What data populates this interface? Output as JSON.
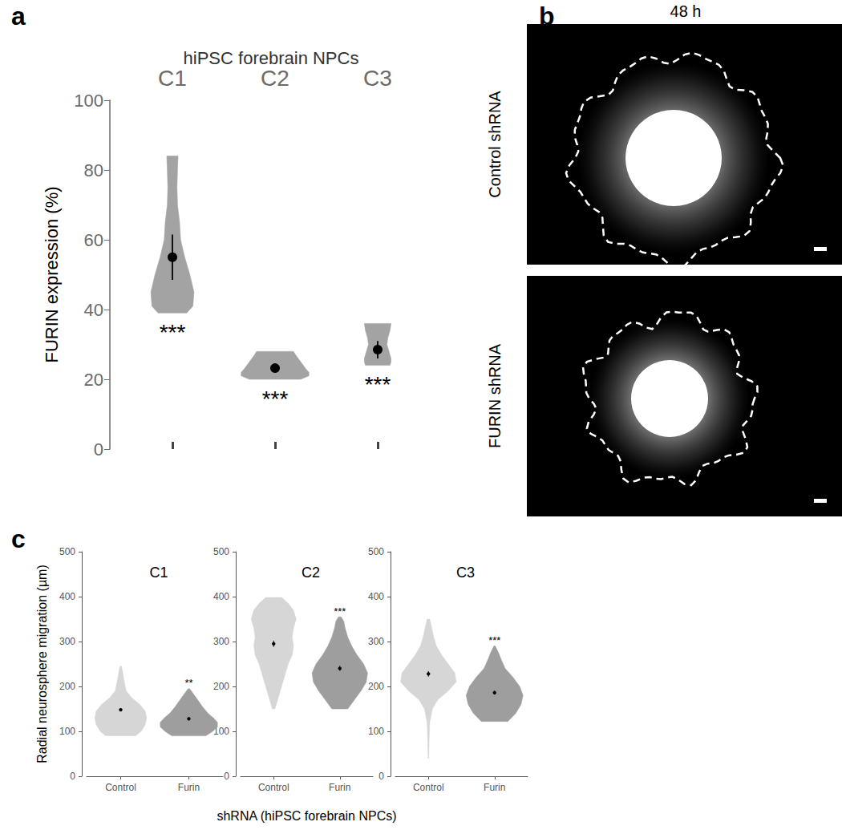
{
  "chart_data": [
    {
      "panel": "a",
      "type": "violin",
      "title": "hiPSC forebrain NPCs",
      "y_label": "FURIN expression (%)",
      "categories": [
        "C1",
        "C2",
        "C3"
      ],
      "ylim": [
        0,
        100
      ],
      "yticks": [
        0,
        20,
        40,
        60,
        80,
        100
      ],
      "color": "#a3a3a3",
      "violins": [
        {
          "density": [
            [
              39,
              0.14
            ],
            [
              41,
              0.2
            ],
            [
              45,
              0.21
            ],
            [
              50,
              0.17
            ],
            [
              55,
              0.12
            ],
            [
              60,
              0.08
            ],
            [
              65,
              0.07
            ],
            [
              70,
              0.05
            ],
            [
              75,
              0.045
            ],
            [
              80,
              0.05
            ],
            [
              84,
              0.055
            ]
          ],
          "mean": 55,
          "error": [
            48.5,
            61.5
          ],
          "annotation": "***"
        },
        {
          "density": [
            [
              20,
              0.25
            ],
            [
              21,
              0.33
            ],
            [
              22,
              0.33
            ],
            [
              23,
              0.3
            ],
            [
              25,
              0.25
            ],
            [
              27,
              0.2
            ],
            [
              28,
              0.18
            ]
          ],
          "mean": 23.2,
          "error": [
            22.3,
            24.2
          ],
          "annotation": "***"
        },
        {
          "density": [
            [
              24,
              0.12
            ],
            [
              25,
              0.13
            ],
            [
              26,
              0.13
            ],
            [
              28,
              0.11
            ],
            [
              30,
              0.09
            ],
            [
              32,
              0.1
            ],
            [
              34,
              0.12
            ],
            [
              36,
              0.13
            ]
          ],
          "mean": 28.5,
          "error": [
            26,
            31
          ],
          "annotation": "***"
        }
      ]
    },
    {
      "panel": "b",
      "type": "image",
      "title": "48 h",
      "rows": [
        "Control shRNA",
        "FURIN shRNA"
      ]
    },
    {
      "panel": "c",
      "type": "violin",
      "title": "C1",
      "y_label": "Radial neurosphere migration (µm)",
      "categories": [
        "Control",
        "Furin"
      ],
      "ylim": [
        0,
        500
      ],
      "yticks": [
        0,
        100,
        200,
        300,
        400,
        500
      ],
      "colors": [
        "#d6d6d6",
        "#9e9e9e"
      ],
      "violins": [
        {
          "density": [
            [
              90,
              0.22
            ],
            [
              100,
              0.3
            ],
            [
              115,
              0.36
            ],
            [
              130,
              0.38
            ],
            [
              145,
              0.36
            ],
            [
              160,
              0.28
            ],
            [
              175,
              0.16
            ],
            [
              190,
              0.08
            ],
            [
              205,
              0.06
            ],
            [
              220,
              0.04
            ],
            [
              235,
              0.025
            ],
            [
              245,
              0.01
            ]
          ],
          "mean": 148,
          "error": [
            145,
            151
          ]
        },
        {
          "density": [
            [
              90,
              0.25
            ],
            [
              100,
              0.35
            ],
            [
              110,
              0.42
            ],
            [
              120,
              0.42
            ],
            [
              130,
              0.36
            ],
            [
              140,
              0.28
            ],
            [
              155,
              0.2
            ],
            [
              170,
              0.13
            ],
            [
              185,
              0.06
            ],
            [
              195,
              0.01
            ]
          ],
          "mean": 128,
          "error": [
            125,
            131
          ],
          "annotation": "**"
        }
      ]
    },
    {
      "type": "violin",
      "title": "C2",
      "x_label": "shRNA (hiPSC forebrain NPCs)",
      "categories": [
        "Control",
        "Furin"
      ],
      "ylim": [
        0,
        500
      ],
      "yticks": [
        0,
        100,
        200,
        300,
        400,
        500
      ],
      "colors": [
        "#d6d6d6",
        "#9e9e9e"
      ],
      "violins": [
        {
          "density": [
            [
              150,
              0.02
            ],
            [
              170,
              0.06
            ],
            [
              190,
              0.1
            ],
            [
              210,
              0.14
            ],
            [
              230,
              0.18
            ],
            [
              250,
              0.22
            ],
            [
              270,
              0.28
            ],
            [
              290,
              0.3
            ],
            [
              310,
              0.28
            ],
            [
              330,
              0.3
            ],
            [
              350,
              0.34
            ],
            [
              370,
              0.3
            ],
            [
              385,
              0.22
            ],
            [
              398,
              0.12
            ]
          ],
          "mean": 295,
          "error": [
            288,
            302
          ]
        },
        {
          "density": [
            [
              150,
              0.12
            ],
            [
              170,
              0.22
            ],
            [
              190,
              0.32
            ],
            [
              210,
              0.4
            ],
            [
              230,
              0.42
            ],
            [
              250,
              0.36
            ],
            [
              270,
              0.26
            ],
            [
              290,
              0.18
            ],
            [
              310,
              0.12
            ],
            [
              330,
              0.08
            ],
            [
              345,
              0.06
            ],
            [
              355,
              0.02
            ]
          ],
          "mean": 240,
          "error": [
            235,
            246
          ],
          "annotation": "***"
        }
      ]
    },
    {
      "type": "violin",
      "title": "C3",
      "categories": [
        "Control",
        "Furin"
      ],
      "ylim": [
        0,
        500
      ],
      "yticks": [
        0,
        100,
        200,
        300,
        400,
        500
      ],
      "colors": [
        "#d6d6d6",
        "#9e9e9e"
      ],
      "violins": [
        {
          "density": [
            [
              40,
              0.005
            ],
            [
              80,
              0.01
            ],
            [
              120,
              0.02
            ],
            [
              150,
              0.06
            ],
            [
              170,
              0.14
            ],
            [
              190,
              0.3
            ],
            [
              210,
              0.42
            ],
            [
              230,
              0.4
            ],
            [
              250,
              0.3
            ],
            [
              270,
              0.2
            ],
            [
              290,
              0.12
            ],
            [
              310,
              0.08
            ],
            [
              330,
              0.05
            ],
            [
              350,
              0.02
            ]
          ],
          "mean": 228,
          "error": [
            222,
            234
          ]
        },
        {
          "density": [
            [
              122,
              0.2
            ],
            [
              140,
              0.32
            ],
            [
              160,
              0.4
            ],
            [
              180,
              0.43
            ],
            [
              200,
              0.38
            ],
            [
              220,
              0.28
            ],
            [
              240,
              0.16
            ],
            [
              260,
              0.1
            ],
            [
              275,
              0.06
            ],
            [
              290,
              0.01
            ]
          ],
          "mean": 186,
          "error": [
            182,
            190
          ],
          "annotation": "***"
        }
      ]
    }
  ]
}
